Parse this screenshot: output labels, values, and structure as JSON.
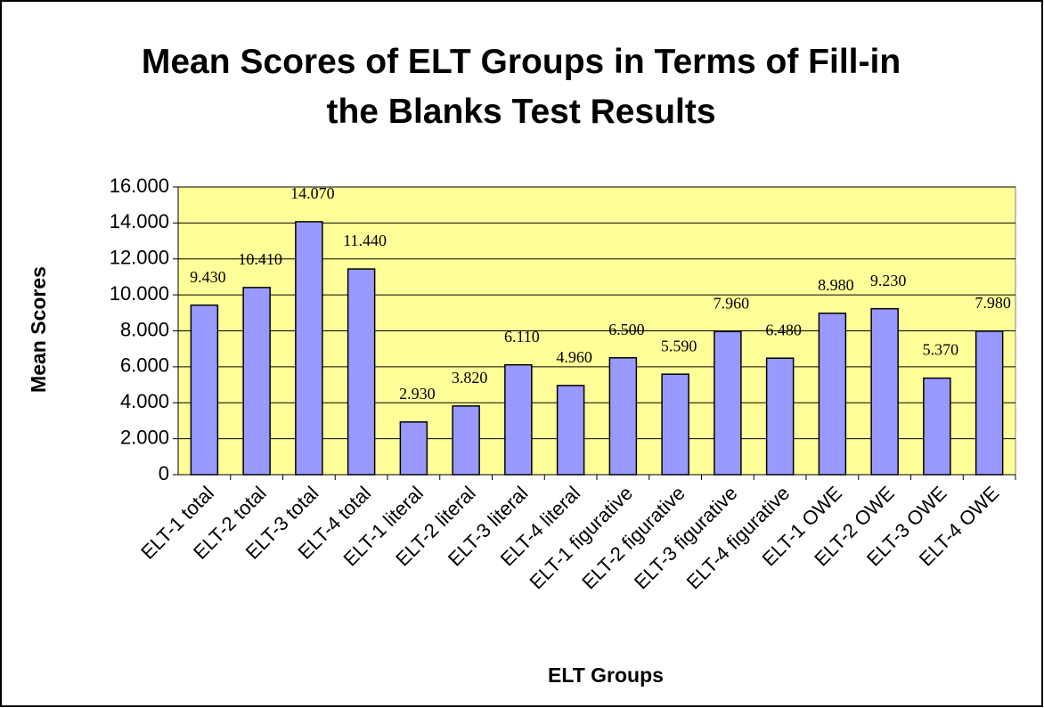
{
  "chart_data": {
    "type": "bar",
    "title": "Mean Scores of ELT Groups in Terms of Fill-in the Blanks Test Results",
    "x_label": "ELT Groups",
    "y_label": "Mean Scores",
    "categories": [
      "ELT-1 total",
      "ELT-2 total",
      "ELT-3 total",
      "ELT-4 total",
      "ELT-1 literal",
      "ELT-2 literal",
      "ELT-3 literal",
      "ELT-4 literal",
      "ELT-1 figurative",
      "ELT-2 figurative",
      "ELT-3 figurative",
      "ELT-4 figurative",
      "ELT-1 OWE",
      "ELT-2 OWE",
      "ELT-3 OWE",
      "ELT-4 OWE"
    ],
    "values": [
      9.43,
      10.41,
      14.07,
      11.44,
      2.93,
      3.82,
      6.11,
      4.96,
      6.5,
      5.59,
      7.96,
      6.48,
      8.98,
      9.23,
      5.37,
      7.98
    ],
    "value_labels": [
      "9.430",
      "10.410",
      "14.070",
      "11.440",
      "2.930",
      "3.820",
      "6.110",
      "4.960",
      "6.500",
      "5.590",
      "7.960",
      "6.480",
      "8.980",
      "9.230",
      "5.370",
      "7.980"
    ],
    "color": "#9999ff",
    "background": "#ffff99",
    "ylim": [
      0,
      16
    ],
    "yticks": [
      0,
      {
        "value": 2,
        "label": "2.000"
      },
      {
        "value": 4,
        "label": "4.000"
      },
      {
        "value": 6,
        "label": "6.000"
      },
      {
        "value": 8,
        "label": "8.000"
      },
      {
        "value": 10,
        "label": "10.000"
      },
      {
        "value": 12,
        "label": "12.000"
      },
      {
        "value": 14,
        "label": "14.000"
      },
      {
        "value": 16,
        "label": "16.000"
      }
    ],
    "grid": true
  }
}
